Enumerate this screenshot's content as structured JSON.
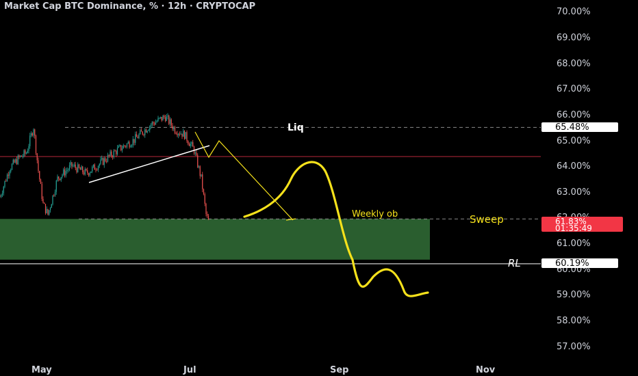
{
  "title": "Market Cap BTC Dominance, % · 12h · CRYPTOCAP",
  "colors": {
    "background": "#000000",
    "up": "#26a69a",
    "down": "#ef5350",
    "zone": "#2a5e2f",
    "drawing": "#f5e11b",
    "resistance": "#b8293a",
    "label_price": "#f23645"
  },
  "chart_data": {
    "type": "candlestick",
    "ylim": [
      56.5,
      70.5
    ],
    "y_ticks": [
      "70.00%",
      "69.00%",
      "68.00%",
      "67.00%",
      "66.00%",
      "65.00%",
      "64.00%",
      "63.00%",
      "62.00%",
      "61.00%",
      "60.00%",
      "59.00%",
      "58.00%",
      "57.00%"
    ],
    "x_ticks": [
      "May",
      "Jul",
      "Sep",
      "Nov"
    ],
    "series_close_approx": [
      [
        "2024-04-20",
        62.8
      ],
      [
        "2024-04-24",
        63.9
      ],
      [
        "2024-04-28",
        64.3
      ],
      [
        "2024-05-01",
        64.5
      ],
      [
        "2024-05-04",
        65.5
      ],
      [
        "2024-05-06",
        63.8
      ],
      [
        "2024-05-08",
        62.5
      ],
      [
        "2024-05-10",
        62.1
      ],
      [
        "2024-05-14",
        63.5
      ],
      [
        "2024-05-20",
        64.0
      ],
      [
        "2024-05-26",
        63.7
      ],
      [
        "2024-06-01",
        64.1
      ],
      [
        "2024-06-08",
        64.6
      ],
      [
        "2024-06-15",
        65.0
      ],
      [
        "2024-06-22",
        65.6
      ],
      [
        "2024-06-28",
        65.9
      ],
      [
        "2024-07-02",
        65.4
      ],
      [
        "2024-07-06",
        65.2
      ],
      [
        "2024-07-10",
        64.6
      ],
      [
        "2024-07-13",
        63.5
      ],
      [
        "2024-07-15",
        62.1
      ],
      [
        "2024-07-16",
        61.83
      ]
    ],
    "levels": [
      {
        "label": "Liq",
        "value": 65.48,
        "tag": "65.48%"
      },
      {
        "label": "RL",
        "value": 60.19,
        "tag": "60.19%"
      }
    ],
    "current_price": {
      "value": "61.83%",
      "countdown": "01:35:49"
    },
    "zone": {
      "label": "Weekly ob",
      "top": 61.93,
      "bottom": 60.35
    },
    "annotations": [
      "Liq",
      "Weekly ob",
      "Sweep",
      "RL"
    ]
  }
}
